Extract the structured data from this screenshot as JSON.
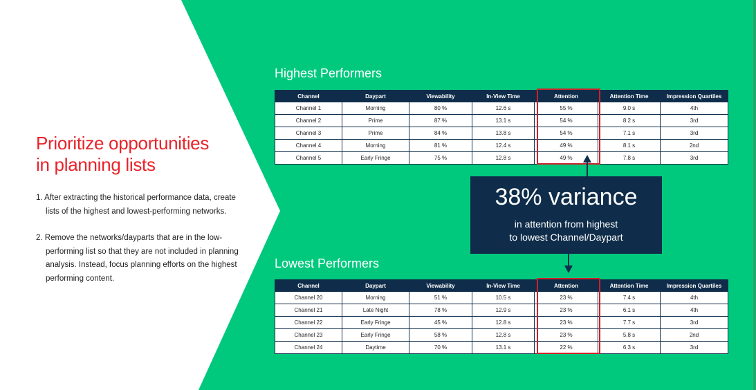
{
  "colors": {
    "green": "#00c97e",
    "navy": "#0f2d4a",
    "red": "#e8232a",
    "highlight": "#cc2229"
  },
  "left": {
    "headline_line1": "Prioritize opportunities",
    "headline_line2": "in planning lists",
    "steps": [
      "1. After extracting the historical performance data, create lists of the highest and lowest-performing networks.",
      "2. Remove the networks/dayparts that are in the low-performing list so that they are not included in planning analysis. Instead, focus planning efforts on the highest performing content."
    ]
  },
  "highest": {
    "title": "Highest Performers",
    "headers": [
      "Channel",
      "Daypart",
      "Viewability",
      "In-View Time",
      "Attention",
      "Attention Time",
      "Impression Quartiles"
    ],
    "rows": [
      [
        "Channel 1",
        "Morning",
        "80 %",
        "12.6 s",
        "55 %",
        "9.0 s",
        "4th"
      ],
      [
        "Channel 2",
        "Prime",
        "87 %",
        "13.1 s",
        "54 %",
        "8.2 s",
        "3rd"
      ],
      [
        "Channel 3",
        "Prime",
        "84 %",
        "13.8 s",
        "54 %",
        "7.1 s",
        "3rd"
      ],
      [
        "Channel 4",
        "Morning",
        "81 %",
        "12.4 s",
        "49 %",
        "8.1 s",
        "2nd"
      ],
      [
        "Channel 5",
        "Early Fringe",
        "75 %",
        "12.8 s",
        "49 %",
        "7.8 s",
        "3rd"
      ]
    ]
  },
  "lowest": {
    "title": "Lowest Performers",
    "headers": [
      "Channel",
      "Daypart",
      "Viewability",
      "In-View Time",
      "Attention",
      "Attention Time",
      "Impression Quartiles"
    ],
    "rows": [
      [
        "Channel 20",
        "Morning",
        "51 %",
        "10.5 s",
        "23 %",
        "7.4 s",
        "4th"
      ],
      [
        "Channel 21",
        "Late Night",
        "78 %",
        "12.9 s",
        "23 %",
        "6.1 s",
        "4th"
      ],
      [
        "Channel 22",
        "Early Fringe",
        "45 %",
        "12.8 s",
        "23 %",
        "7.7 s",
        "3rd"
      ],
      [
        "Channel 23",
        "Early Fringe",
        "58 %",
        "12.8 s",
        "23 %",
        "5.8 s",
        "2nd"
      ],
      [
        "Channel 24",
        "Daytime",
        "70 %",
        "13.1 s",
        "22 %",
        "6.3 s",
        "3rd"
      ]
    ]
  },
  "callout": {
    "big": "38% variance",
    "line1": "in attention from highest",
    "line2": "to lowest Channel/Daypart"
  }
}
